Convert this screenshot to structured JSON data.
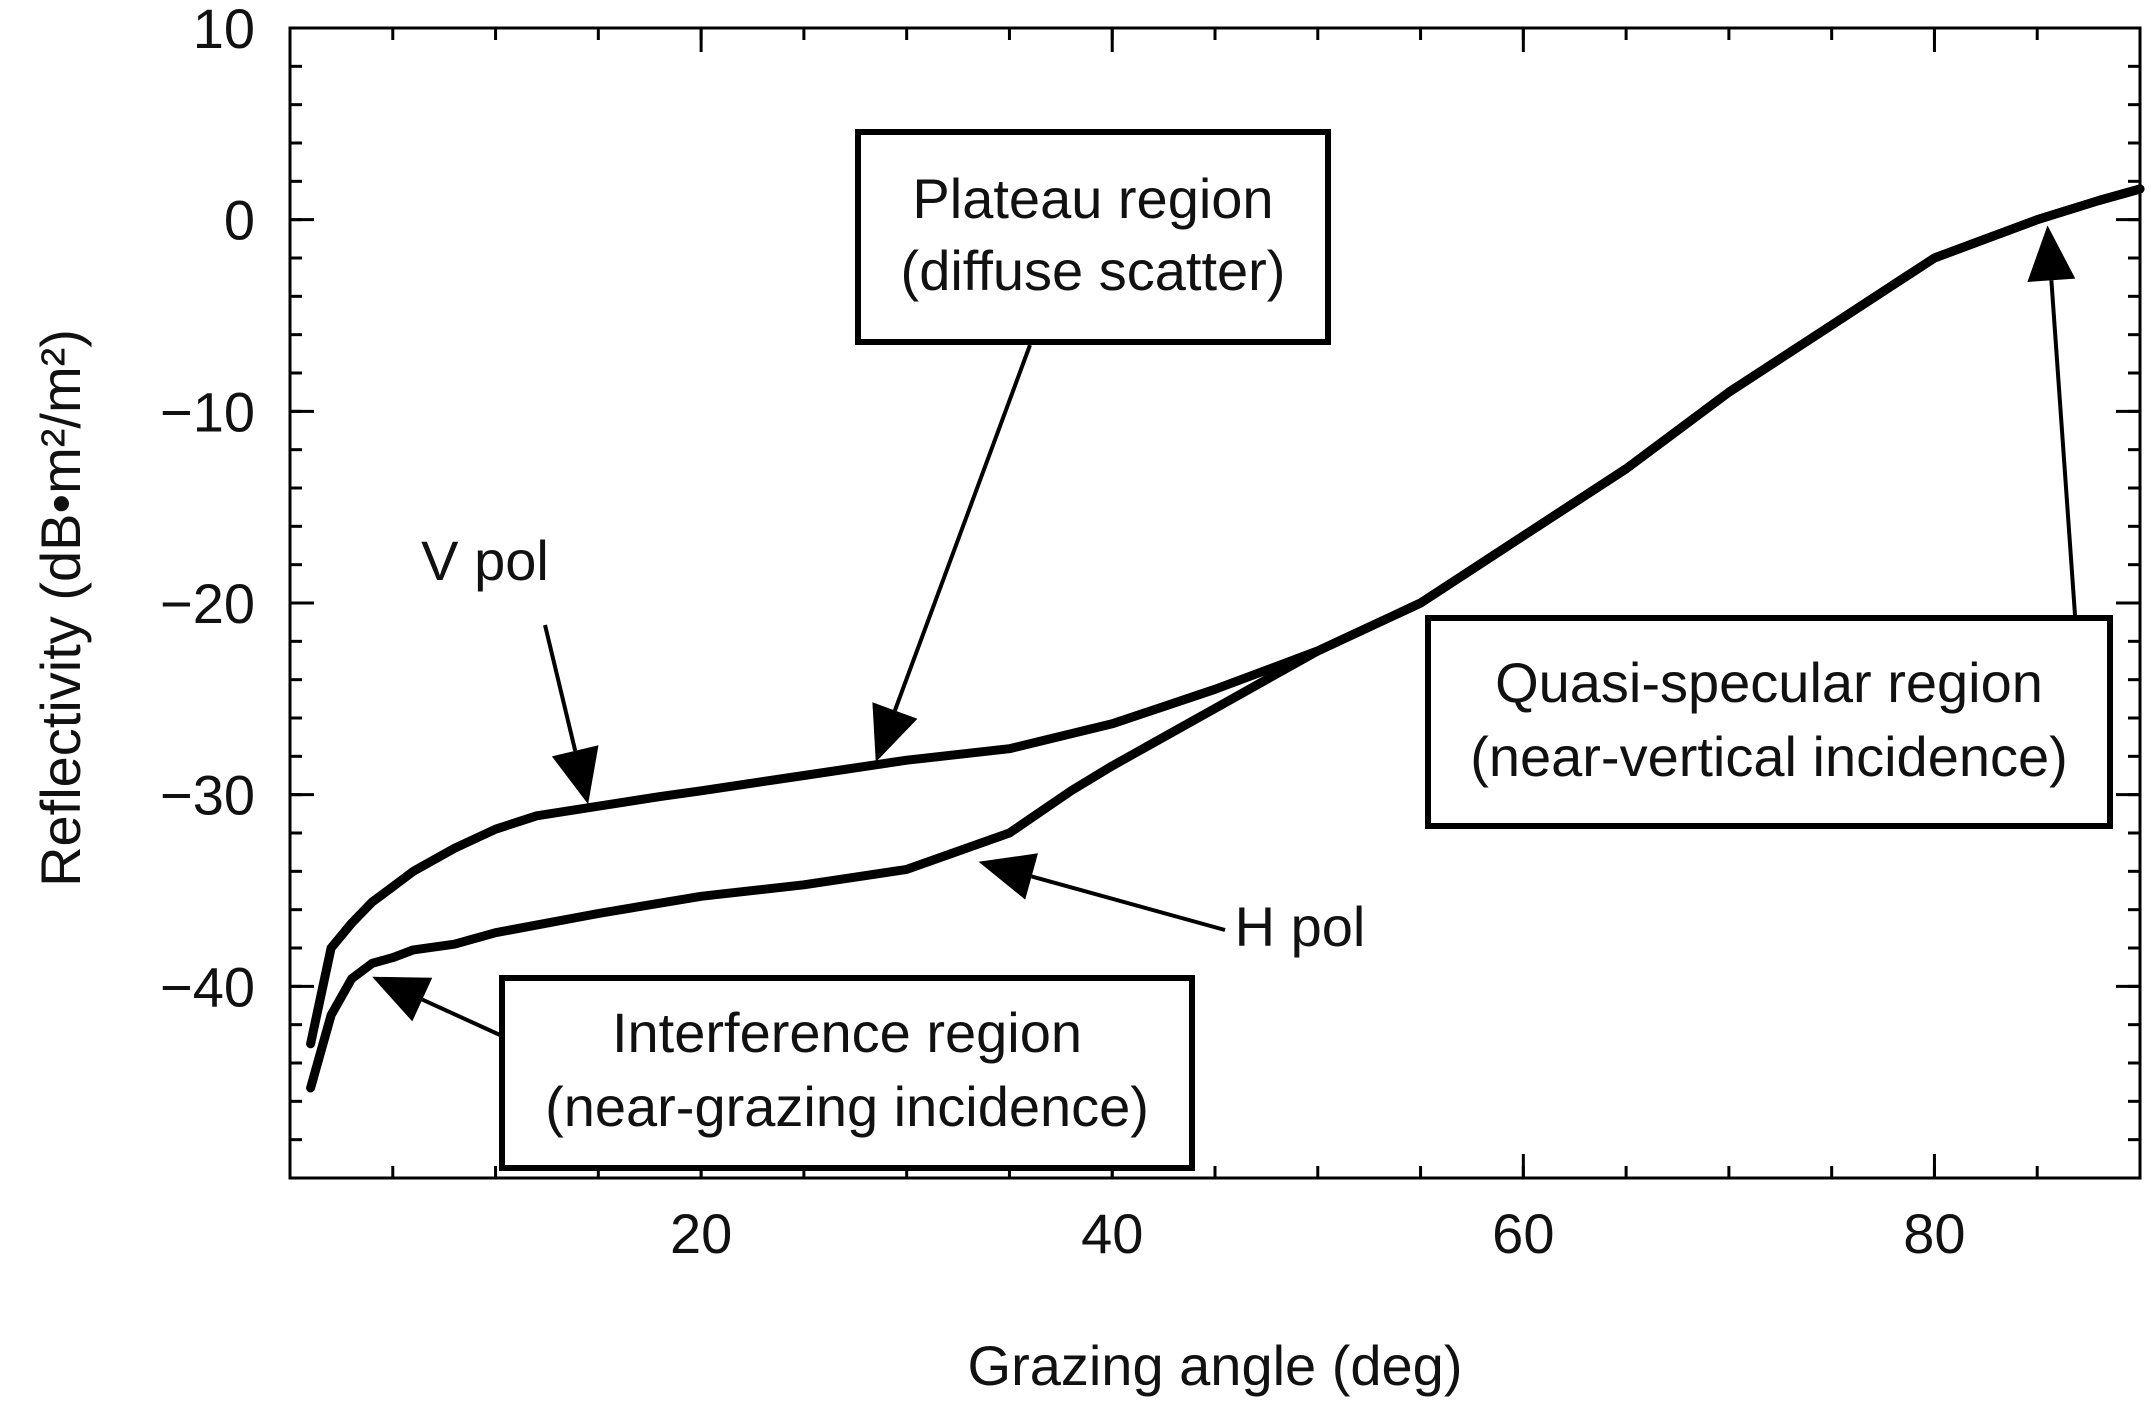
{
  "chart_data": {
    "type": "line",
    "title": "",
    "xlabel": "Grazing angle (deg)",
    "ylabel": "Reflectivity (dB•m²/m²)",
    "xlim": [
      0,
      90
    ],
    "ylim": [
      -50,
      10
    ],
    "x_ticks": [
      20,
      40,
      60,
      80
    ],
    "y_ticks": [
      10,
      0,
      -10,
      -20,
      -30,
      -40
    ],
    "y_tick_labels": [
      "10",
      "0",
      "−10",
      "−20",
      "−30",
      "−40"
    ],
    "grid": false,
    "series": [
      {
        "name": "V pol",
        "x": [
          1,
          2,
          3,
          4,
          5,
          6,
          8,
          10,
          12,
          15,
          18,
          20,
          25,
          30,
          35,
          40,
          45,
          50,
          55,
          60,
          65,
          70,
          75,
          80,
          85,
          88,
          90
        ],
        "y": [
          -43,
          -38,
          -36.7,
          -35.6,
          -34.8,
          -34,
          -32.8,
          -31.8,
          -31.1,
          -30.6,
          -30.1,
          -29.8,
          -29,
          -28.2,
          -27.6,
          -26.3,
          -24.5,
          -22.5,
          -20,
          -16.5,
          -13,
          -9,
          -5.5,
          -2,
          0,
          1,
          1.6
        ]
      },
      {
        "name": "H pol",
        "x": [
          1,
          2,
          3,
          4,
          5,
          6,
          8,
          10,
          15,
          20,
          25,
          30,
          35,
          38,
          40,
          45,
          50,
          55,
          60,
          65,
          70,
          75,
          80,
          85,
          88,
          90
        ],
        "y": [
          -45.3,
          -41.5,
          -39.6,
          -38.8,
          -38.5,
          -38.1,
          -37.8,
          -37.2,
          -36.2,
          -35.3,
          -34.7,
          -33.9,
          -32,
          -29.8,
          -28.5,
          -25.5,
          -22.5,
          -20,
          -16.5,
          -13,
          -9,
          -5.5,
          -2,
          0,
          1,
          1.6
        ]
      }
    ],
    "annotations": [
      {
        "id": "v-pol",
        "text": "V pol",
        "target": {
          "x": 14.5,
          "y": -30.5
        }
      },
      {
        "id": "h-pol",
        "text": "H pol",
        "target": {
          "x": 33.5,
          "y": -33.5
        }
      },
      {
        "id": "plateau",
        "line1": "Plateau region",
        "line2": "(diffuse scatter)",
        "target": {
          "x": 28.5,
          "y": -28.3
        }
      },
      {
        "id": "quasi",
        "line1": "Quasi-specular region",
        "line2": "(near-vertical incidence)",
        "target": {
          "x": 85.5,
          "y": -0.3
        }
      },
      {
        "id": "interference",
        "line1": "Interference region",
        "line2": "(near-grazing incidence)",
        "target": {
          "x": 4,
          "y": -39.5
        }
      }
    ]
  }
}
